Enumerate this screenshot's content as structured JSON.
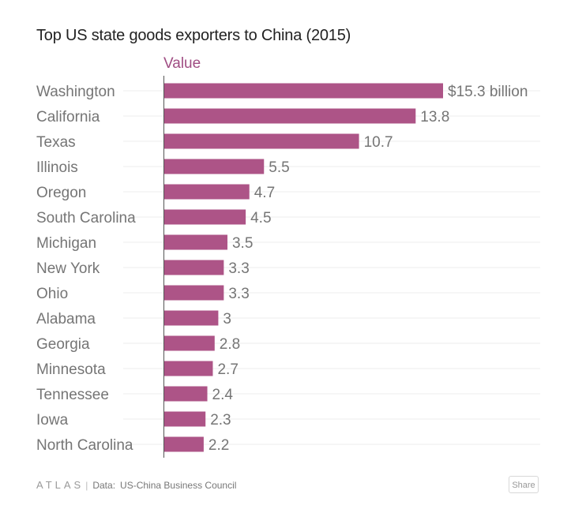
{
  "chart_data": {
    "type": "bar",
    "orientation": "horizontal",
    "title": "Top US state goods exporters to China (2015)",
    "legend": "Value",
    "categories": [
      "Washington",
      "California",
      "Texas",
      "Illinois",
      "Oregon",
      "South Carolina",
      "Michigan",
      "New York",
      "Ohio",
      "Alabama",
      "Georgia",
      "Minnesota",
      "Tennessee",
      "Iowa",
      "North Carolina"
    ],
    "values": [
      15.3,
      13.8,
      10.7,
      5.5,
      4.7,
      4.5,
      3.5,
      3.3,
      3.3,
      3,
      2.8,
      2.7,
      2.4,
      2.3,
      2.2
    ],
    "value_labels": [
      "$15.3 billion",
      "13.8",
      "10.7",
      "5.5",
      "4.7",
      "4.5",
      "3.5",
      "3.3",
      "3.3",
      "3",
      "2.8",
      "2.7",
      "2.4",
      "2.3",
      "2.2"
    ],
    "xlim": [
      0,
      15.3
    ],
    "bar_color": "#ad5487",
    "grid": true
  },
  "footer": {
    "brand": "ATLAS",
    "separator": "|",
    "source_label": "Data:",
    "source": "US-China Business Council",
    "share_label": "Share"
  }
}
